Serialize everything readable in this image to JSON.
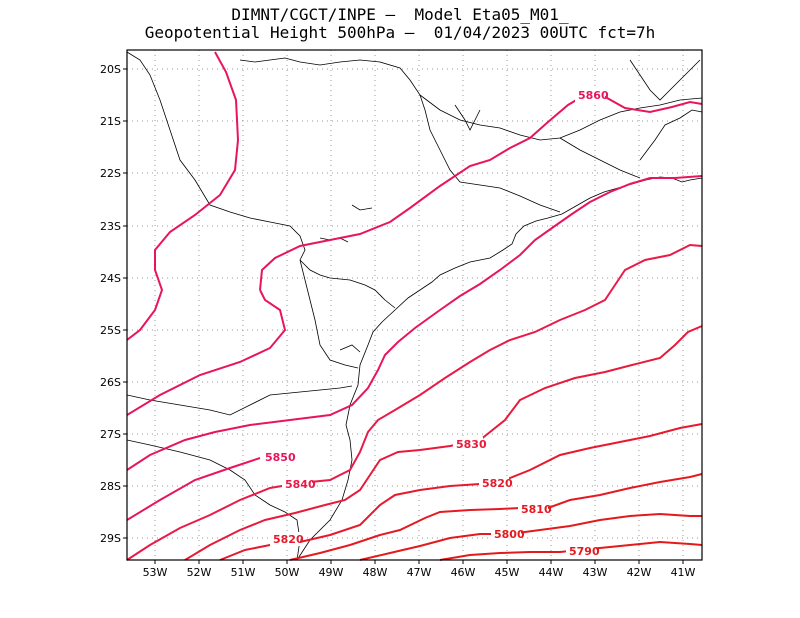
{
  "title_line1": "DIMNT/CGCT/INPE –  Model Eta05_M01_",
  "title_line2": "Geopotential Height 500hPa –  01/04/2023 00UTC fct=7h",
  "map": {
    "lat_labels": [
      "20S",
      "21S",
      "22S",
      "23S",
      "24S",
      "25S",
      "26S",
      "27S",
      "28S",
      "29S"
    ],
    "lon_labels": [
      "53W",
      "52W",
      "51W",
      "50W",
      "49W",
      "48W",
      "47W",
      "46W",
      "45W",
      "44W",
      "43W",
      "42W",
      "41W"
    ]
  },
  "chart_data": {
    "type": "contour",
    "variable": "Geopotential Height 500hPa",
    "contour_labels": [
      "5860",
      "5850",
      "5840",
      "5830",
      "5820",
      "5820",
      "5810",
      "5800",
      "5790"
    ],
    "levels": [
      5790,
      5800,
      5810,
      5820,
      5830,
      5840,
      5850,
      5860
    ],
    "colors": {
      "5860": "#e8155e",
      "5850": "#e8155e",
      "5840": "#ea1a48",
      "5830": "#e81a3a",
      "5820": "#e61a2c",
      "5810": "#e41a22",
      "5800": "#e31a1c",
      "5790": "#e31a1c"
    },
    "grid": true
  },
  "colors": {
    "frame": "#000000",
    "coast": "#000000",
    "grid": "#999999"
  }
}
